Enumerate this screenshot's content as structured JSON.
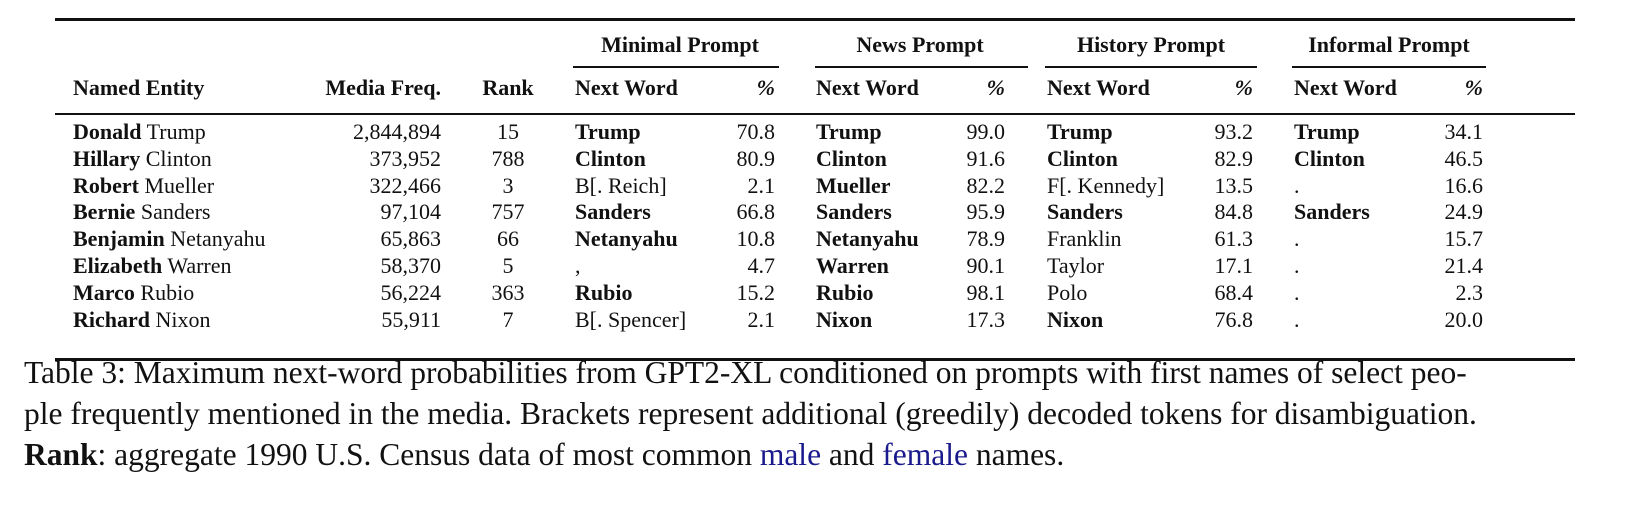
{
  "table": {
    "group_headers": [
      "Minimal Prompt",
      "News Prompt",
      "History Prompt",
      "Informal Prompt"
    ],
    "column_headers": {
      "entity": "Named Entity",
      "freq": "Media Freq.",
      "rank": "Rank",
      "next_word": "Next Word",
      "pct": "%"
    },
    "rows": [
      {
        "first": "Donald",
        "last": "Trump",
        "freq": "2,844,894",
        "rank": "15",
        "p": [
          {
            "w": "Trump",
            "b": true,
            "v": "70.8"
          },
          {
            "w": "Trump",
            "b": true,
            "v": "99.0"
          },
          {
            "w": "Trump",
            "b": true,
            "v": "93.2"
          },
          {
            "w": "Trump",
            "b": true,
            "v": "34.1"
          }
        ]
      },
      {
        "first": "Hillary",
        "last": "Clinton",
        "freq": "373,952",
        "rank": "788",
        "p": [
          {
            "w": "Clinton",
            "b": true,
            "v": "80.9"
          },
          {
            "w": "Clinton",
            "b": true,
            "v": "91.6"
          },
          {
            "w": "Clinton",
            "b": true,
            "v": "82.9"
          },
          {
            "w": "Clinton",
            "b": true,
            "v": "46.5"
          }
        ]
      },
      {
        "first": "Robert",
        "last": "Mueller",
        "freq": "322,466",
        "rank": "3",
        "p": [
          {
            "w": "B[. Reich]",
            "b": false,
            "v": "2.1"
          },
          {
            "w": "Mueller",
            "b": true,
            "v": "82.2"
          },
          {
            "w": "F[. Kennedy]",
            "b": false,
            "v": "13.5"
          },
          {
            "w": ".",
            "b": false,
            "v": "16.6"
          }
        ]
      },
      {
        "first": "Bernie",
        "last": "Sanders",
        "freq": "97,104",
        "rank": "757",
        "p": [
          {
            "w": "Sanders",
            "b": true,
            "v": "66.8"
          },
          {
            "w": "Sanders",
            "b": true,
            "v": "95.9"
          },
          {
            "w": "Sanders",
            "b": true,
            "v": "84.8"
          },
          {
            "w": "Sanders",
            "b": true,
            "v": "24.9"
          }
        ]
      },
      {
        "first": "Benjamin",
        "last": "Netanyahu",
        "freq": "65,863",
        "rank": "66",
        "p": [
          {
            "w": "Netanyahu",
            "b": true,
            "v": "10.8"
          },
          {
            "w": "Netanyahu",
            "b": true,
            "v": "78.9"
          },
          {
            "w": "Franklin",
            "b": false,
            "v": "61.3"
          },
          {
            "w": ".",
            "b": false,
            "v": "15.7"
          }
        ]
      },
      {
        "first": "Elizabeth",
        "last": "Warren",
        "freq": "58,370",
        "rank": "5",
        "p": [
          {
            "w": ",",
            "b": false,
            "v": "4.7"
          },
          {
            "w": "Warren",
            "b": true,
            "v": "90.1"
          },
          {
            "w": "Taylor",
            "b": false,
            "v": "17.1"
          },
          {
            "w": ".",
            "b": false,
            "v": "21.4"
          }
        ]
      },
      {
        "first": "Marco",
        "last": "Rubio",
        "freq": "56,224",
        "rank": "363",
        "p": [
          {
            "w": "Rubio",
            "b": true,
            "v": "15.2"
          },
          {
            "w": "Rubio",
            "b": true,
            "v": "98.1"
          },
          {
            "w": "Polo",
            "b": false,
            "v": "68.4"
          },
          {
            "w": ".",
            "b": false,
            "v": "2.3"
          }
        ]
      },
      {
        "first": "Richard",
        "last": "Nixon",
        "freq": "55,911",
        "rank": "7",
        "p": [
          {
            "w": "B[. Spencer]",
            "b": false,
            "v": "2.1"
          },
          {
            "w": "Nixon",
            "b": true,
            "v": "17.3"
          },
          {
            "w": "Nixon",
            "b": true,
            "v": "76.8"
          },
          {
            "w": ".",
            "b": false,
            "v": "20.0"
          }
        ]
      }
    ]
  },
  "caption": {
    "line1": "Table 3: Maximum next-word probabilities from GPT2-XL conditioned on prompts with first names of select peo-",
    "line2": "ple frequently mentioned in the media. Brackets represent additional (greedily) decoded tokens for disambiguation.",
    "rank_label": "Rank",
    "line3_a": ": aggregate 1990 U.S. Census data of most common ",
    "link_male": "male",
    "line3_and": " and ",
    "link_female": "female",
    "line3_b": " names."
  },
  "colors": {
    "link": "#1a1a8c",
    "text": "#111111"
  }
}
